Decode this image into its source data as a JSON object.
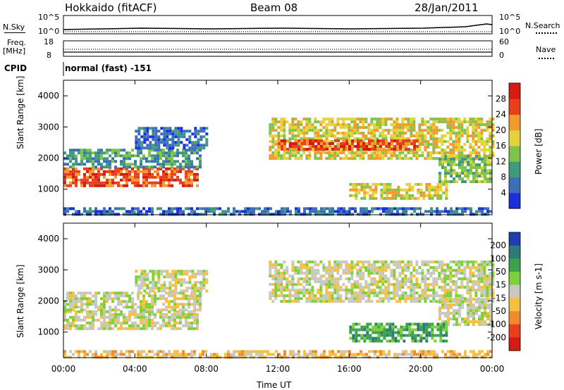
{
  "header": {
    "station": "Hokkaido (fitACF)",
    "beam": "Beam 08",
    "date": "28/Jan/2011"
  },
  "top_panel": {
    "left_label": "N.Sky",
    "right_label": "N.Search",
    "left_ticks": [
      "10^5",
      "10^0"
    ],
    "right_ticks": [
      "10^5",
      "10^0"
    ]
  },
  "freq_panel": {
    "left_label_top": "Freq.",
    "left_label_unit": "[MHz]",
    "right_label": "Nave",
    "left_ticks": [
      "18",
      "8"
    ],
    "right_ticks": [
      "60",
      "0"
    ]
  },
  "cpid": {
    "label": "CPID",
    "value": "normal (fast) -151"
  },
  "chart_data": [
    {
      "type": "heatmap",
      "name": "power",
      "ylabel": "Slant Range [km]",
      "ylim": [
        180,
        4500
      ],
      "y_ticks": [
        "1000",
        "2000",
        "3000",
        "4000"
      ],
      "x_ticks": [
        "00:00",
        "04:00",
        "08:00",
        "12:00",
        "16:00",
        "20:00",
        "00:00"
      ],
      "colorbar": {
        "label": "Power [dB]",
        "ticks": [
          "4",
          "8",
          "12",
          "16",
          "20",
          "24",
          "28"
        ],
        "colors": [
          "#1c2fd8",
          "#3c6fb8",
          "#3f9a7c",
          "#7fc34c",
          "#e3d23a",
          "#f39a2c",
          "#e8401e",
          "#d51c14"
        ]
      },
      "blocks": [
        {
          "t0": 0.0,
          "t1": 7.5,
          "r0": 1150,
          "r1": 1700,
          "level": 6
        },
        {
          "t0": 0.0,
          "t1": 7.6,
          "r0": 1700,
          "r1": 2300,
          "level": 2
        },
        {
          "t0": 4.0,
          "t1": 8.0,
          "r0": 2300,
          "r1": 3000,
          "level": 1
        },
        {
          "t0": 11.5,
          "t1": 24.0,
          "r0": 2000,
          "r1": 3300,
          "level": 4
        },
        {
          "t0": 12.0,
          "t1": 20.0,
          "r0": 2300,
          "r1": 2600,
          "level": 6
        },
        {
          "t0": 21.0,
          "t1": 24.0,
          "r0": 1200,
          "r1": 2100,
          "level": 3
        },
        {
          "t0": 16.0,
          "t1": 21.5,
          "r0": 700,
          "r1": 1200,
          "level": 4
        },
        {
          "t0": 0.0,
          "t1": 24.0,
          "r0": 180,
          "r1": 420,
          "level": 1
        }
      ]
    },
    {
      "type": "heatmap",
      "name": "velocity",
      "ylabel": "Slant Range [km]",
      "xlabel": "Time UT",
      "ylim": [
        180,
        4500
      ],
      "y_ticks": [
        "1000",
        "2000",
        "3000",
        "4000"
      ],
      "x_ticks": [
        "00:00",
        "04:00",
        "08:00",
        "12:00",
        "16:00",
        "20:00",
        "00:00"
      ],
      "colorbar": {
        "label": "Velocity [m s-1]",
        "ticks": [
          "200",
          "100",
          "50",
          "15",
          "-15",
          "-50",
          "-100",
          "-200"
        ],
        "colors": [
          "#1f3fb0",
          "#2f7a78",
          "#3ea24c",
          "#7cd03c",
          "#c8c8c0",
          "#f5c040",
          "#f08a2a",
          "#e8401e",
          "#d51c14"
        ]
      },
      "blocks": [
        {
          "t0": 0.0,
          "t1": 7.5,
          "r0": 1150,
          "r1": 1700,
          "level": 4
        },
        {
          "t0": 0.0,
          "t1": 7.6,
          "r0": 1700,
          "r1": 2300,
          "level": 4
        },
        {
          "t0": 4.0,
          "t1": 8.0,
          "r0": 2300,
          "r1": 3000,
          "level": 4
        },
        {
          "t0": 11.5,
          "t1": 24.0,
          "r0": 2000,
          "r1": 3300,
          "level": 4
        },
        {
          "t0": 21.0,
          "t1": 24.0,
          "r0": 1200,
          "r1": 2100,
          "level": 4
        },
        {
          "t0": 16.0,
          "t1": 21.5,
          "r0": 700,
          "r1": 1300,
          "level": 2
        },
        {
          "t0": 0.0,
          "t1": 24.0,
          "r0": 180,
          "r1": 420,
          "level": 5
        }
      ]
    }
  ]
}
